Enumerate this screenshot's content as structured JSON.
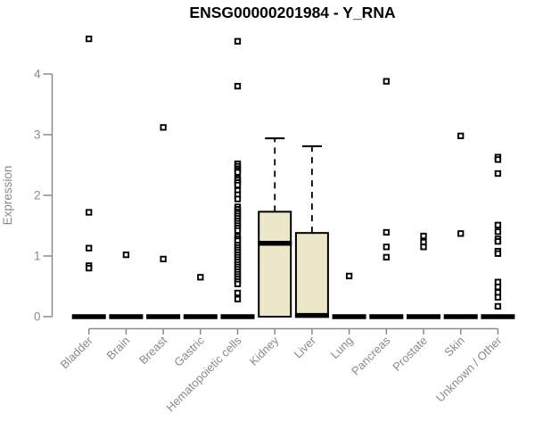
{
  "chart_data": {
    "type": "boxplot",
    "title": "ENSG00000201984 - Y_RNA",
    "ylabel": "Expression",
    "xlabel": "",
    "ylim": [
      0,
      4.75
    ],
    "yticks": [
      0,
      1,
      2,
      3,
      4
    ],
    "grid": false,
    "legend": "none",
    "colors": {
      "box_fill": "#ece7c8",
      "box_stroke": "#000000",
      "axis_color": "#8a8a8a",
      "outlier_stroke": "#000000",
      "background": "#ffffff"
    },
    "categories": [
      "Bladder",
      "Brain",
      "Breast",
      "Gastric",
      "Hematopoietic cells",
      "Kidney",
      "Liver",
      "Lung",
      "Pancreas",
      "Prostate",
      "Skin",
      "Unknown / Other"
    ],
    "boxes": [
      {
        "category": "Bladder",
        "q1": 0,
        "median": 0,
        "q3": 0,
        "whisker_low": 0,
        "whisker_high": 0,
        "outliers": [
          4.58,
          1.72,
          1.13,
          0.84,
          0.8
        ]
      },
      {
        "category": "Brain",
        "q1": 0,
        "median": 0,
        "q3": 0,
        "whisker_low": 0,
        "whisker_high": 0,
        "outliers": [
          1.02
        ]
      },
      {
        "category": "Breast",
        "q1": 0,
        "median": 0,
        "q3": 0,
        "whisker_low": 0,
        "whisker_high": 0,
        "outliers": [
          3.12,
          0.95
        ]
      },
      {
        "category": "Gastric",
        "q1": 0,
        "median": 0,
        "q3": 0,
        "whisker_low": 0,
        "whisker_high": 0,
        "outliers": [
          0.65
        ]
      },
      {
        "category": "Hematopoietic cells",
        "q1": 0,
        "median": 0,
        "q3": 0,
        "whisker_low": 0,
        "whisker_high": 0,
        "outliers": [
          4.54,
          3.8,
          2.52,
          2.48,
          2.44,
          2.41,
          2.38,
          2.28,
          2.25,
          2.21,
          2.17,
          2.08,
          2.01,
          1.94,
          1.81,
          1.77,
          1.73,
          1.7,
          1.66,
          1.62,
          1.58,
          1.54,
          1.5,
          1.46,
          1.42,
          1.32,
          1.28,
          1.25,
          1.18,
          1.14,
          1.1,
          1.06,
          1.02,
          0.98,
          0.94,
          0.9,
          0.86,
          0.82,
          0.78,
          0.74,
          0.7,
          0.66,
          0.62,
          0.58,
          0.54,
          0.39,
          0.29
        ]
      },
      {
        "category": "Kidney",
        "q1": 0,
        "median": 1.21,
        "q3": 1.73,
        "whisker_low": 0,
        "whisker_high": 2.94,
        "outliers": []
      },
      {
        "category": "Liver",
        "q1": 0,
        "median": 0.02,
        "q3": 1.38,
        "whisker_low": 0,
        "whisker_high": 2.81,
        "outliers": []
      },
      {
        "category": "Lung",
        "q1": 0,
        "median": 0,
        "q3": 0,
        "whisker_low": 0,
        "whisker_high": 0,
        "outliers": [
          0.67
        ]
      },
      {
        "category": "Pancreas",
        "q1": 0,
        "median": 0,
        "q3": 0,
        "whisker_low": 0,
        "whisker_high": 0,
        "outliers": [
          3.88,
          1.39,
          1.15,
          0.98
        ]
      },
      {
        "category": "Prostate",
        "q1": 0,
        "median": 0,
        "q3": 0,
        "whisker_low": 0,
        "whisker_high": 0,
        "outliers": [
          1.33,
          1.23,
          1.15
        ]
      },
      {
        "category": "Skin",
        "q1": 0,
        "median": 0,
        "q3": 0,
        "whisker_low": 0,
        "whisker_high": 0,
        "outliers": [
          2.98,
          1.37
        ]
      },
      {
        "category": "Unknown / Other",
        "q1": 0,
        "median": 0,
        "q3": 0,
        "whisker_low": 0,
        "whisker_high": 0,
        "outliers": [
          2.63,
          2.59,
          2.36,
          1.51,
          1.4,
          1.28,
          1.24,
          1.08,
          1.04,
          0.57,
          0.49,
          0.4,
          0.32,
          0.17
        ]
      }
    ]
  }
}
